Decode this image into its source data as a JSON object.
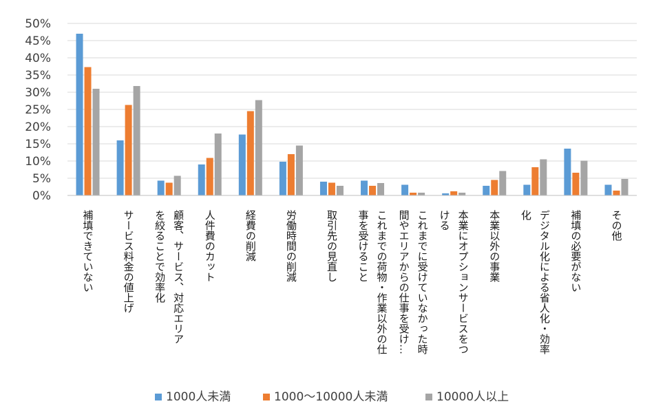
{
  "chart_data": {
    "type": "bar",
    "title": "",
    "xlabel": "",
    "ylabel": "",
    "ylim": [
      0,
      0.5
    ],
    "y_ticks": [
      "0%",
      "5%",
      "10%",
      "15%",
      "20%",
      "25%",
      "30%",
      "35%",
      "40%",
      "45%",
      "50%"
    ],
    "grid": true,
    "legend_position": "bottom",
    "categories": [
      [
        "補填できていない"
      ],
      [
        "サービス料金の値上げ"
      ],
      [
        "顧客、サービス、対応エリア",
        "を絞ることで効率化"
      ],
      [
        "人件費のカット"
      ],
      [
        "経費の削減"
      ],
      [
        "労働時間の削減"
      ],
      [
        "取引先の見直し"
      ],
      [
        "これまでの荷物・作業以外の仕",
        "事を受けること"
      ],
      [
        "これまでに受けていなかった時",
        "間やエリアからの仕事を受け…"
      ],
      [
        "本業にオプションサービスをつ",
        "ける"
      ],
      [
        "本業以外の事業"
      ],
      [
        "デジタル化による省人化・効率",
        "化"
      ],
      [
        "補填の必要がない"
      ],
      [
        "その他"
      ]
    ],
    "series": [
      {
        "name": "1000人未満",
        "color": "#5b9bd5",
        "values": [
          0.47,
          0.16,
          0.043,
          0.09,
          0.177,
          0.098,
          0.04,
          0.043,
          0.031,
          0.006,
          0.028,
          0.031,
          0.136,
          0.031
        ]
      },
      {
        "name": "1000～10000人未満",
        "color": "#ed7d31",
        "values": [
          0.373,
          0.263,
          0.037,
          0.109,
          0.245,
          0.12,
          0.037,
          0.028,
          0.008,
          0.012,
          0.045,
          0.082,
          0.066,
          0.014
        ]
      },
      {
        "name": "10000人以上",
        "color": "#a5a5a5",
        "values": [
          0.31,
          0.318,
          0.057,
          0.18,
          0.277,
          0.145,
          0.028,
          0.036,
          0.008,
          0.008,
          0.071,
          0.105,
          0.101,
          0.048
        ]
      }
    ]
  }
}
